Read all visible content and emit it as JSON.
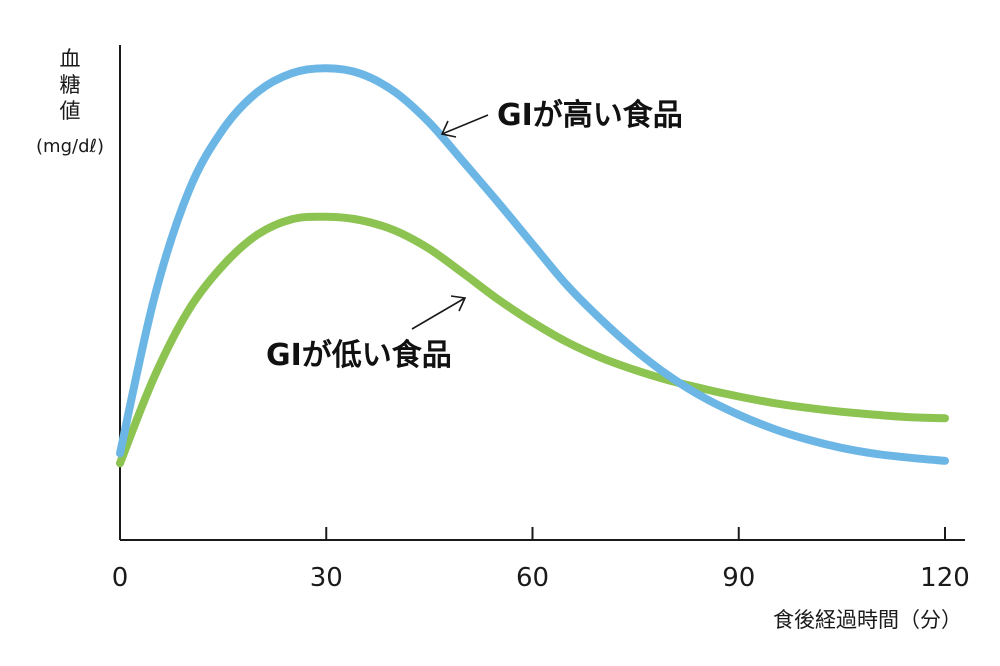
{
  "chart_data": {
    "type": "line",
    "title": "",
    "ylabel": {
      "chars": [
        "血",
        "糖",
        "値"
      ],
      "unit": "(mg/dℓ)"
    },
    "xlabel": "食後経過時間（分）",
    "xlim": [
      0,
      120
    ],
    "ylim": [
      0,
      100
    ],
    "x_ticks": [
      0,
      30,
      60,
      90,
      120
    ],
    "x_tick_labels": [
      "0",
      "30",
      "60",
      "90",
      "120"
    ],
    "grid": false,
    "legend": "none",
    "annotations": [
      {
        "text": "GIが高い食品",
        "series": "GIが高い食品"
      },
      {
        "text": "GIが低い食品",
        "series": "GIが低い食品"
      }
    ],
    "series": [
      {
        "name": "GIが高い食品",
        "color": "#6cb6e6",
        "x": [
          0,
          5,
          10,
          15,
          20,
          25,
          30,
          35,
          40,
          45,
          50,
          55,
          60,
          65,
          70,
          75,
          80,
          85,
          90,
          95,
          100,
          105,
          110,
          115,
          120
        ],
        "y": [
          17.5,
          49,
          70.5,
          83,
          90.5,
          94.3,
          95.3,
          94.2,
          90.5,
          84.3,
          76.3,
          68.2,
          59.8,
          51.5,
          44.5,
          38.3,
          33,
          28.7,
          25.3,
          22.5,
          20.3,
          18.6,
          17.4,
          16.6,
          16
        ]
      },
      {
        "name": "GIが低い食品",
        "color": "#8cc351",
        "x": [
          0,
          5,
          10,
          15,
          20,
          25,
          30,
          35,
          40,
          45,
          50,
          55,
          60,
          65,
          70,
          75,
          80,
          85,
          90,
          95,
          100,
          105,
          110,
          115,
          120
        ],
        "y": [
          15.5,
          33,
          46.5,
          55.5,
          61.7,
          64.8,
          65.3,
          64.6,
          62.5,
          58.8,
          53.8,
          48.6,
          44,
          40,
          36.8,
          34.3,
          32.2,
          30.5,
          29,
          27.7,
          26.7,
          25.9,
          25.3,
          24.8,
          24.6
        ]
      }
    ]
  }
}
